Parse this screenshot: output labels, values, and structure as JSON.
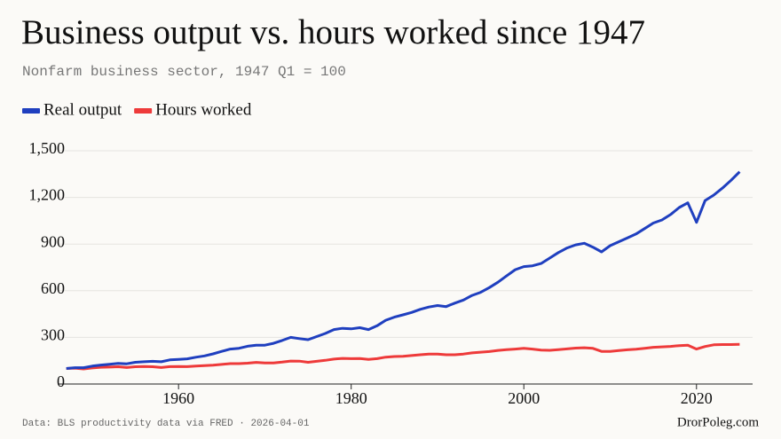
{
  "chart_data": {
    "type": "line",
    "title": "Business output vs. hours worked since 1947",
    "subtitle": "Nonfarm business sector, 1947 Q1 = 100",
    "source": "Data: BLS productivity data via FRED · 2026-04-01",
    "brand": "DrorPoleg.com",
    "legend": "top-left",
    "grid": true,
    "x": [
      1947,
      1948,
      1949,
      1950,
      1951,
      1952,
      1953,
      1954,
      1955,
      1956,
      1957,
      1958,
      1959,
      1960,
      1961,
      1962,
      1963,
      1964,
      1965,
      1966,
      1967,
      1968,
      1969,
      1970,
      1971,
      1972,
      1973,
      1974,
      1975,
      1976,
      1977,
      1978,
      1979,
      1980,
      1981,
      1982,
      1983,
      1984,
      1985,
      1986,
      1987,
      1988,
      1989,
      1990,
      1991,
      1992,
      1993,
      1994,
      1995,
      1996,
      1997,
      1998,
      1999,
      2000,
      2001,
      2002,
      2003,
      2004,
      2005,
      2006,
      2007,
      2008,
      2009,
      2010,
      2011,
      2012,
      2013,
      2014,
      2015,
      2016,
      2017,
      2018,
      2019,
      2020,
      2021,
      2022,
      2023,
      2024,
      2025
    ],
    "series": [
      {
        "name": "Real output",
        "color": "#1f3fbf",
        "values": [
          100,
          105,
          105,
          115,
          122,
          127,
          133,
          130,
          140,
          143,
          146,
          143,
          155,
          158,
          162,
          172,
          181,
          194,
          210,
          225,
          230,
          243,
          250,
          250,
          262,
          280,
          300,
          292,
          285,
          305,
          325,
          350,
          358,
          355,
          362,
          350,
          375,
          410,
          430,
          445,
          460,
          480,
          495,
          505,
          498,
          520,
          540,
          570,
          590,
          620,
          655,
          695,
          735,
          755,
          760,
          775,
          810,
          845,
          875,
          895,
          905,
          880,
          850,
          890,
          915,
          940,
          965,
          1000,
          1035,
          1055,
          1090,
          1135,
          1165,
          1040,
          1180,
          1215,
          1260,
          1310,
          1365
        ]
      },
      {
        "name": "Hours worked",
        "color": "#ee3a3a",
        "values": [
          100,
          102,
          97,
          103,
          108,
          109,
          111,
          106,
          111,
          113,
          111,
          106,
          112,
          113,
          112,
          116,
          118,
          121,
          126,
          131,
          131,
          134,
          139,
          136,
          136,
          141,
          148,
          147,
          140,
          146,
          152,
          160,
          165,
          163,
          164,
          158,
          163,
          173,
          177,
          178,
          183,
          188,
          193,
          193,
          188,
          188,
          193,
          200,
          205,
          209,
          216,
          221,
          225,
          229,
          225,
          218,
          217,
          221,
          226,
          231,
          233,
          229,
          210,
          210,
          215,
          220,
          224,
          230,
          236,
          239,
          242,
          247,
          249,
          225,
          241,
          252,
          254,
          254,
          255
        ]
      }
    ],
    "xlim": [
      1946,
      2026.5
    ],
    "xticks": [
      1960,
      1980,
      2000,
      2020
    ],
    "ylim": [
      0,
      1500
    ],
    "yticks": [
      0,
      300,
      600,
      900,
      {
        "value": 1200,
        "label": "1,200"
      },
      {
        "value": 1500,
        "label": "1,500"
      }
    ]
  }
}
